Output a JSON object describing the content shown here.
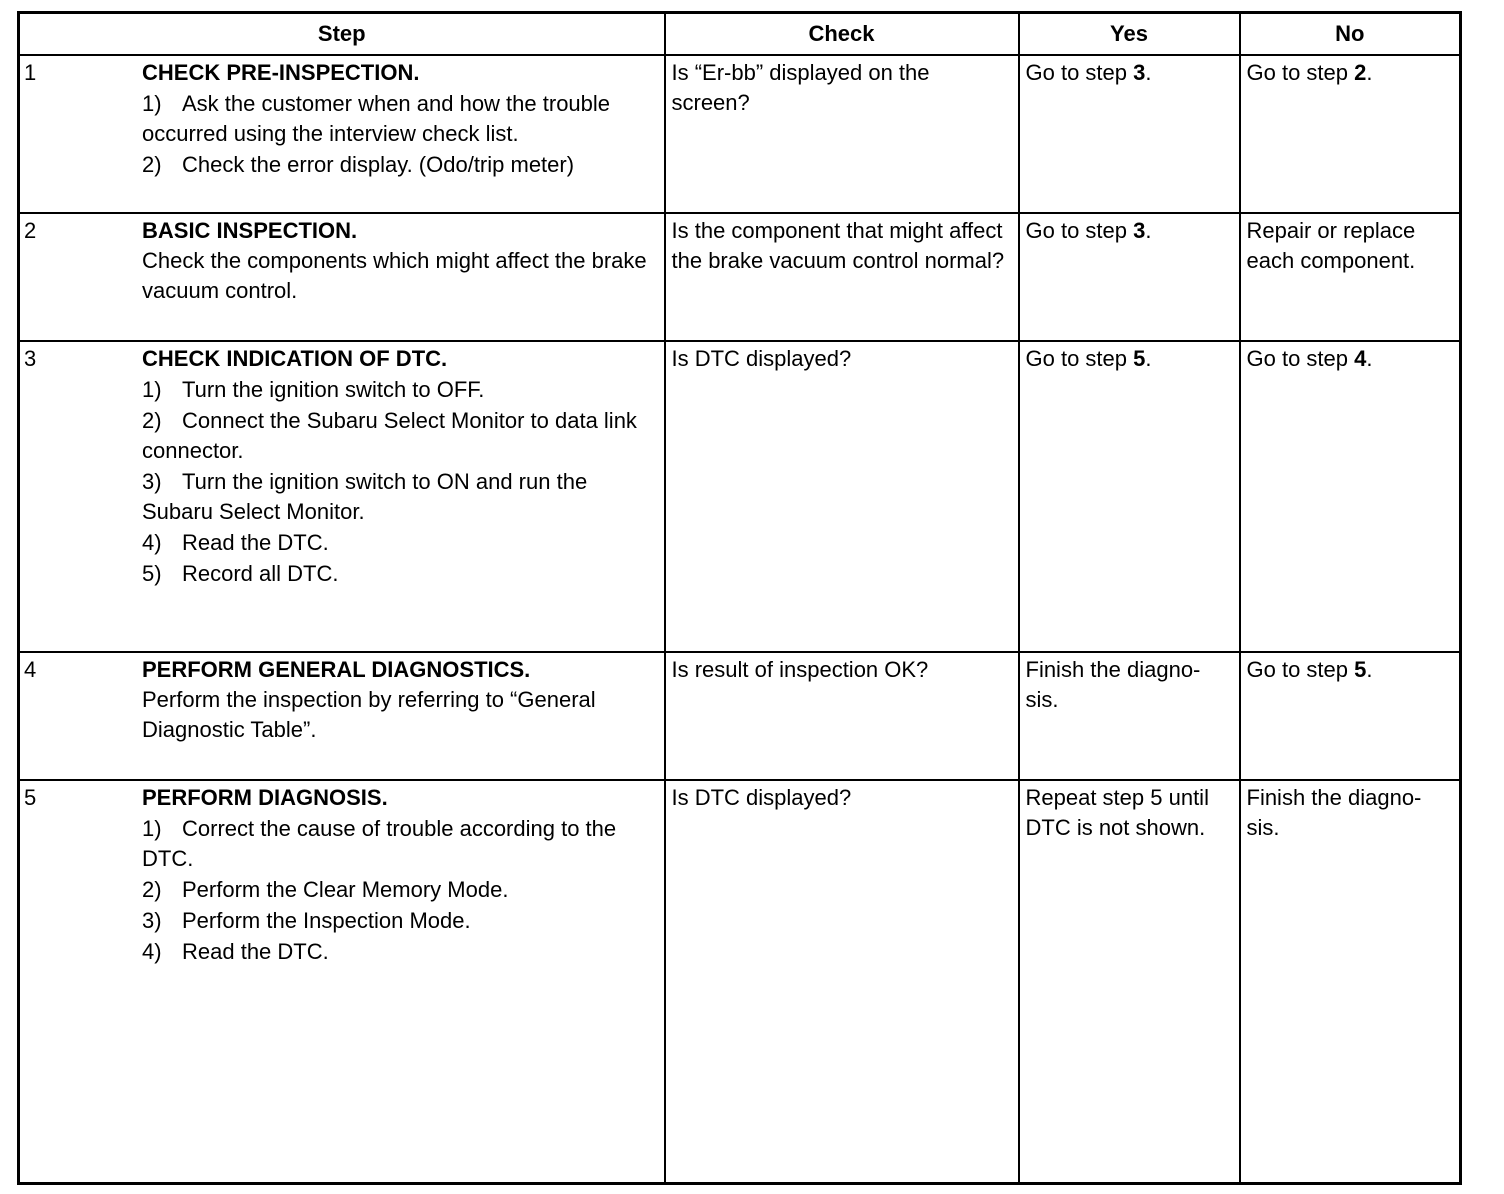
{
  "headers": {
    "step": "Step",
    "check": "Check",
    "yes": "Yes",
    "no": "No"
  },
  "rows": [
    {
      "num": "1",
      "title": "CHECK PRE-INSPECTION.",
      "desc": "",
      "items": [
        {
          "n": "1)",
          "text": "Ask the customer when and how the trouble occurred using the interview check list."
        },
        {
          "n": "2)",
          "text": "Check the error display. (Odo/trip meter)"
        }
      ],
      "check": "Is “Er-bb” displayed on the screen?",
      "yes": {
        "text": "Go to step ",
        "step": "3",
        "suffix": "."
      },
      "no": {
        "text": "Go to step ",
        "step": "2",
        "suffix": "."
      }
    },
    {
      "num": "2",
      "title": "BASIC INSPECTION.",
      "desc": "Check the components which might affect the brake vacuum control.",
      "items": [],
      "check": "Is the component that might affect the brake vacuum control normal?",
      "yes": {
        "text": "Go to step ",
        "step": "3",
        "suffix": "."
      },
      "no": {
        "text": "Repair or replace each component.",
        "step": "",
        "suffix": ""
      }
    },
    {
      "num": "3",
      "title": "CHECK INDICATION OF DTC.",
      "desc": "",
      "items": [
        {
          "n": "1)",
          "text": "Turn the ignition switch to OFF."
        },
        {
          "n": "2)",
          "text": "Connect the Subaru Select Monitor to data link connector."
        },
        {
          "n": "3)",
          "text": "Turn the ignition switch to ON and run the Subaru Select Monitor."
        },
        {
          "n": "4)",
          "text": "Read the DTC."
        },
        {
          "n": "5)",
          "text": "Record all DTC."
        }
      ],
      "check": "Is DTC displayed?",
      "yes": {
        "text": "Go to step ",
        "step": "5",
        "suffix": "."
      },
      "no": {
        "text": "Go to step ",
        "step": "4",
        "suffix": "."
      }
    },
    {
      "num": "4",
      "title": "PERFORM GENERAL DIAGNOSTICS.",
      "desc": "Perform the inspection by referring to “General Diagnostic Table”.",
      "items": [],
      "check": "Is result of inspection OK?",
      "yes": {
        "text": "Finish the diagno-sis.",
        "step": "",
        "suffix": ""
      },
      "no": {
        "text": "Go to step ",
        "step": "5",
        "suffix": "."
      }
    },
    {
      "num": "5",
      "title": "PERFORM DIAGNOSIS.",
      "desc": "",
      "items": [
        {
          "n": "1)",
          "text": "Correct the cause of trouble according to the DTC."
        },
        {
          "n": "2)",
          "text": "Perform the Clear Memory Mode."
        },
        {
          "n": "3)",
          "text": "Perform the Inspection Mode."
        },
        {
          "n": "4)",
          "text": "Read the DTC."
        }
      ],
      "check": "Is DTC displayed?",
      "yes": {
        "text": "Repeat step 5 until DTC is not shown.",
        "step": "",
        "suffix": ""
      },
      "no": {
        "text": "Finish the diagno-sis.",
        "step": "",
        "suffix": ""
      }
    }
  ]
}
